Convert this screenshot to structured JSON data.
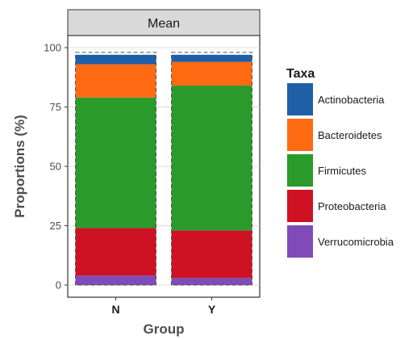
{
  "chart_data": {
    "type": "bar",
    "stacked": true,
    "facet_label": "Mean",
    "categories": [
      "N",
      "Y"
    ],
    "series": [
      {
        "name": "Verrucomicrobia",
        "color": "#7E4BB8",
        "values": [
          4,
          3
        ]
      },
      {
        "name": "Proteobacteria",
        "color": "#CE1223",
        "values": [
          20,
          20
        ]
      },
      {
        "name": "Firmicutes",
        "color": "#2A9A2A",
        "values": [
          55,
          61
        ]
      },
      {
        "name": "Bacteroidetes",
        "color": "#FF6A13",
        "values": [
          14,
          10
        ]
      },
      {
        "name": "Actinobacteria",
        "color": "#1F5FA8",
        "values": [
          4,
          3
        ]
      }
    ],
    "totals": [
      98,
      98
    ],
    "xlabel": "Group",
    "ylabel": "Proportions (%)",
    "ylim": [
      0,
      100
    ],
    "yticks": [
      0,
      25,
      50,
      75,
      100
    ],
    "grid": true,
    "legend_title": "Taxa",
    "legend_order": [
      "Actinobacteria",
      "Bacteroidetes",
      "Firmicutes",
      "Proteobacteria",
      "Verrucomicrobia"
    ],
    "legend_position": "right"
  }
}
